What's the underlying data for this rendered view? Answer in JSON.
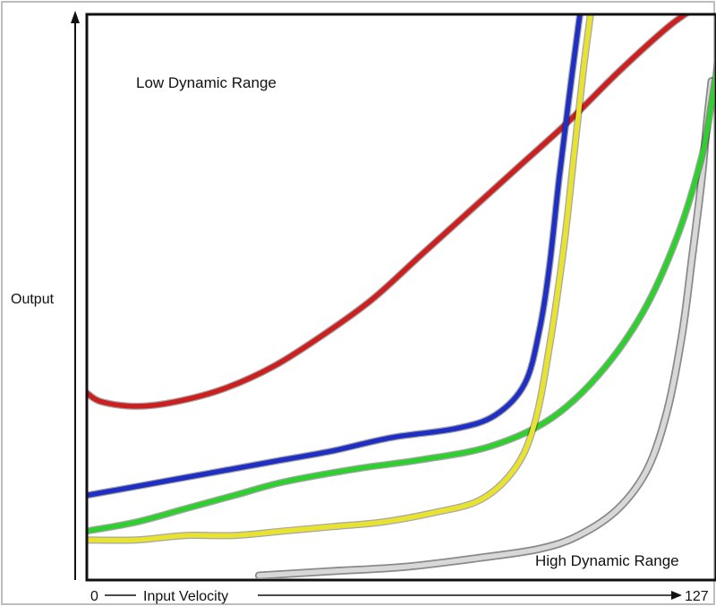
{
  "chart_data": {
    "type": "line",
    "ylabel": "Output",
    "x_axis": {
      "start_label": "0",
      "label": "Input Velocity",
      "end_label": "127"
    },
    "xlim": [
      0,
      127
    ],
    "ylim": [
      0,
      127
    ],
    "annotations": {
      "top": "Low Dynamic Range",
      "bottom": "High Dynamic Range"
    },
    "grid": false,
    "legend": "none",
    "series": [
      {
        "color": "#cc1f1f",
        "points": [
          [
            0,
            42
          ],
          [
            3,
            40
          ],
          [
            10,
            39
          ],
          [
            18,
            40
          ],
          [
            28,
            43
          ],
          [
            38,
            48
          ],
          [
            48,
            55
          ],
          [
            58,
            63
          ],
          [
            68,
            73
          ],
          [
            78,
            83
          ],
          [
            88,
            93
          ],
          [
            98,
            103
          ],
          [
            108,
            114
          ],
          [
            118,
            124
          ],
          [
            123,
            128
          ]
        ]
      },
      {
        "color": "#1f2fc4",
        "points": [
          [
            0,
            19
          ],
          [
            10,
            21
          ],
          [
            20,
            23
          ],
          [
            30,
            25
          ],
          [
            40,
            27
          ],
          [
            50,
            29
          ],
          [
            62,
            32
          ],
          [
            75,
            34
          ],
          [
            83,
            37
          ],
          [
            89,
            44
          ],
          [
            92,
            56
          ],
          [
            94,
            70
          ],
          [
            96,
            90
          ],
          [
            98,
            108
          ],
          [
            100,
            125
          ],
          [
            101,
            132
          ]
        ]
      },
      {
        "color": "#2fcf2f",
        "points": [
          [
            0,
            11
          ],
          [
            10,
            13
          ],
          [
            20,
            16
          ],
          [
            30,
            19
          ],
          [
            40,
            22
          ],
          [
            55,
            25
          ],
          [
            68,
            27
          ],
          [
            82,
            30
          ],
          [
            94,
            36
          ],
          [
            104,
            46
          ],
          [
            113,
            60
          ],
          [
            120,
            77
          ],
          [
            125,
            95
          ],
          [
            127,
            107
          ],
          [
            129,
            122
          ]
        ]
      },
      {
        "color": "#e8e230",
        "points": [
          [
            0,
            9
          ],
          [
            10,
            9
          ],
          [
            20,
            10
          ],
          [
            30,
            10
          ],
          [
            40,
            11
          ],
          [
            50,
            12
          ],
          [
            60,
            13
          ],
          [
            70,
            15
          ],
          [
            80,
            18
          ],
          [
            87,
            25
          ],
          [
            91,
            35
          ],
          [
            94,
            52
          ],
          [
            97,
            75
          ],
          [
            99,
            95
          ],
          [
            101,
            115
          ],
          [
            103,
            132
          ]
        ]
      },
      {
        "color": "#d8d8d8",
        "points": [
          [
            35,
            1
          ],
          [
            50,
            2
          ],
          [
            65,
            3
          ],
          [
            80,
            5
          ],
          [
            92,
            7
          ],
          [
            100,
            10
          ],
          [
            108,
            16
          ],
          [
            114,
            25
          ],
          [
            118,
            38
          ],
          [
            121,
            55
          ],
          [
            123,
            72
          ],
          [
            125,
            90
          ],
          [
            126,
            102
          ],
          [
            127,
            112
          ]
        ]
      }
    ]
  }
}
